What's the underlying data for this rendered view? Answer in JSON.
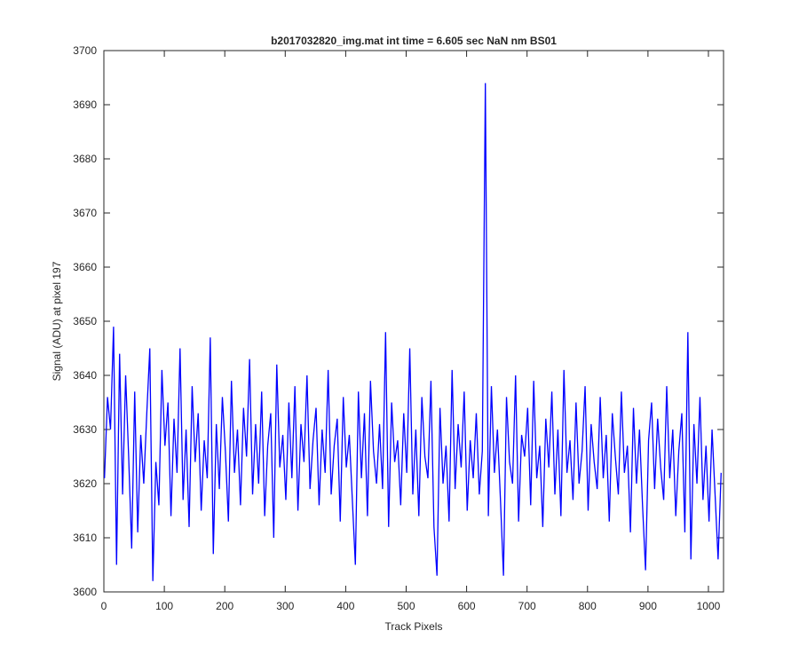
{
  "chart_data": {
    "type": "line",
    "title": "b2017032820_img.mat int time = 6.605 sec  NaN nm BS01",
    "x_label": "Track Pixels",
    "y_label": "Signal (ADU) at pixel 197",
    "color": "#0000ff",
    "xlim": [
      0,
      1025
    ],
    "ylim": [
      3600,
      3700
    ],
    "xticks": [
      0,
      100,
      200,
      300,
      400,
      500,
      600,
      700,
      800,
      900,
      1000
    ],
    "yticks": [
      3600,
      3610,
      3620,
      3630,
      3640,
      3650,
      3660,
      3670,
      3680,
      3690,
      3700
    ],
    "x": [
      1,
      6,
      11,
      16,
      21,
      26,
      31,
      36,
      41,
      46,
      51,
      56,
      61,
      66,
      71,
      76,
      81,
      86,
      91,
      96,
      101,
      106,
      111,
      116,
      121,
      126,
      131,
      136,
      141,
      146,
      151,
      156,
      161,
      166,
      171,
      176,
      181,
      186,
      191,
      196,
      201,
      206,
      211,
      216,
      221,
      226,
      231,
      236,
      241,
      246,
      251,
      256,
      261,
      266,
      271,
      276,
      281,
      286,
      291,
      296,
      301,
      306,
      311,
      316,
      321,
      326,
      331,
      336,
      341,
      346,
      351,
      356,
      361,
      366,
      371,
      376,
      381,
      386,
      391,
      396,
      401,
      406,
      411,
      416,
      421,
      426,
      431,
      436,
      441,
      446,
      451,
      456,
      461,
      466,
      471,
      476,
      481,
      486,
      491,
      496,
      501,
      506,
      511,
      516,
      521,
      526,
      531,
      536,
      541,
      546,
      551,
      556,
      561,
      566,
      571,
      576,
      581,
      586,
      591,
      596,
      601,
      606,
      611,
      616,
      621,
      626,
      631,
      636,
      641,
      646,
      651,
      656,
      661,
      666,
      671,
      676,
      681,
      686,
      691,
      696,
      701,
      706,
      711,
      716,
      721,
      726,
      731,
      736,
      741,
      746,
      751,
      756,
      761,
      766,
      771,
      776,
      781,
      786,
      791,
      796,
      801,
      806,
      811,
      816,
      821,
      826,
      831,
      836,
      841,
      846,
      851,
      856,
      861,
      866,
      871,
      876,
      881,
      886,
      891,
      896,
      901,
      906,
      911,
      916,
      921,
      926,
      931,
      936,
      941,
      946,
      951,
      956,
      961,
      966,
      971,
      976,
      981,
      986,
      991,
      996,
      1001,
      1006,
      1011,
      1016,
      1021
    ],
    "values": [
      3621,
      3636,
      3630,
      3649,
      3605,
      3644,
      3618,
      3640,
      3625,
      3608,
      3637,
      3611,
      3629,
      3620,
      3633,
      3645,
      3602,
      3624,
      3616,
      3641,
      3627,
      3635,
      3614,
      3632,
      3622,
      3645,
      3617,
      3630,
      3612,
      3638,
      3624,
      3633,
      3615,
      3628,
      3621,
      3647,
      3607,
      3631,
      3619,
      3636,
      3626,
      3613,
      3639,
      3622,
      3630,
      3616,
      3634,
      3625,
      3643,
      3618,
      3631,
      3620,
      3637,
      3614,
      3627,
      3633,
      3610,
      3642,
      3623,
      3629,
      3617,
      3635,
      3621,
      3638,
      3615,
      3631,
      3624,
      3640,
      3619,
      3628,
      3634,
      3616,
      3630,
      3622,
      3641,
      3618,
      3627,
      3632,
      3613,
      3636,
      3623,
      3629,
      3617,
      3605,
      3637,
      3621,
      3633,
      3614,
      3639,
      3626,
      3620,
      3631,
      3619,
      3648,
      3612,
      3635,
      3624,
      3628,
      3616,
      3633,
      3622,
      3645,
      3618,
      3630,
      3614,
      3636,
      3625,
      3621,
      3639,
      3612,
      3603,
      3634,
      3620,
      3627,
      3613,
      3641,
      3619,
      3631,
      3623,
      3637,
      3615,
      3628,
      3621,
      3633,
      3618,
      3626,
      3694,
      3614,
      3638,
      3622,
      3630,
      3617,
      3603,
      3636,
      3624,
      3620,
      3640,
      3613,
      3629,
      3625,
      3634,
      3616,
      3639,
      3621,
      3627,
      3612,
      3632,
      3623,
      3637,
      3618,
      3630,
      3614,
      3641,
      3622,
      3628,
      3617,
      3635,
      3620,
      3626,
      3638,
      3615,
      3631,
      3624,
      3619,
      3636,
      3621,
      3629,
      3613,
      3633,
      3625,
      3618,
      3637,
      3622,
      3627,
      3611,
      3634,
      3620,
      3630,
      3616,
      3604,
      3628,
      3635,
      3619,
      3632,
      3623,
      3617,
      3638,
      3621,
      3630,
      3614,
      3626,
      3633,
      3611,
      3648,
      3606,
      3631,
      3620,
      3636,
      3617,
      3627,
      3613,
      3630,
      3618,
      3606,
      3622
    ]
  }
}
